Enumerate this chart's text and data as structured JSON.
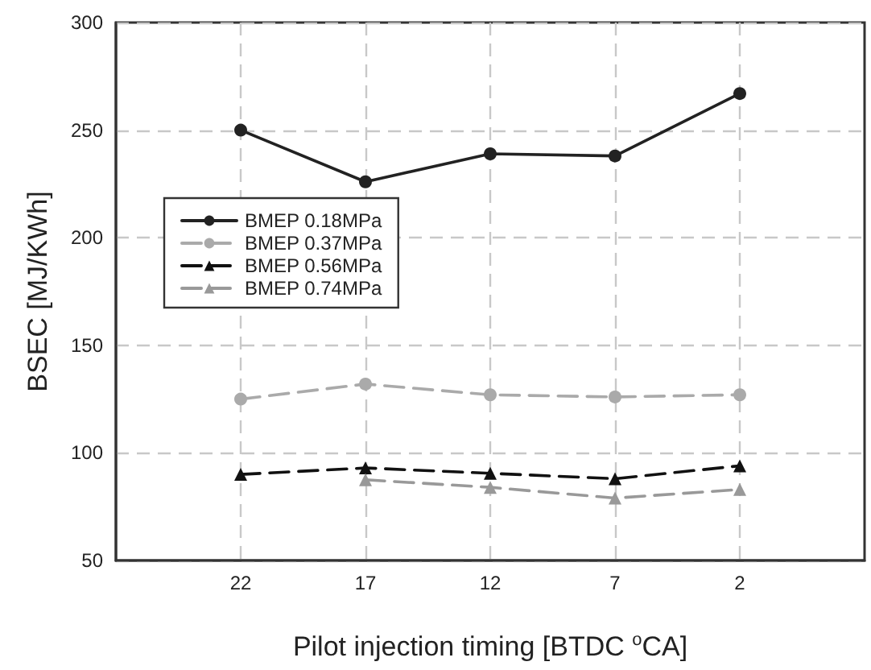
{
  "chart_data": {
    "type": "line",
    "xlabel": "Pilot injection timing [BTDC $^{o}$CA]",
    "ylabel": "BSEC [MJ/KWh]",
    "x": [
      22,
      17,
      12,
      7,
      2
    ],
    "xlim": [
      27,
      -3
    ],
    "xticks": [
      22,
      17,
      12,
      7,
      2
    ],
    "ylim": [
      50,
      300
    ],
    "yticks": [
      50,
      100,
      150,
      200,
      250,
      300
    ],
    "grid": true,
    "legend": "left",
    "series": [
      {
        "name": "BMEP 0.18MPa",
        "color": "#222222",
        "marker": "circle",
        "line_style": "solid",
        "values": [
          250,
          226,
          239,
          238,
          267
        ]
      },
      {
        "name": "BMEP 0.37MPa",
        "color": "#aaaaaa",
        "marker": "circle",
        "line_style": "dashed",
        "values": [
          125,
          132,
          127,
          126,
          127
        ]
      },
      {
        "name": "BMEP 0.56MPa",
        "color": "#111111",
        "marker": "triangle",
        "line_style": "dashed",
        "values": [
          90,
          93,
          90.5,
          88,
          94
        ]
      },
      {
        "name": "BMEP 0.74MPa",
        "color": "#999999",
        "marker": "triangle",
        "line_style": "dashed",
        "values": [
          null,
          87.5,
          84,
          79,
          83
        ]
      }
    ]
  }
}
